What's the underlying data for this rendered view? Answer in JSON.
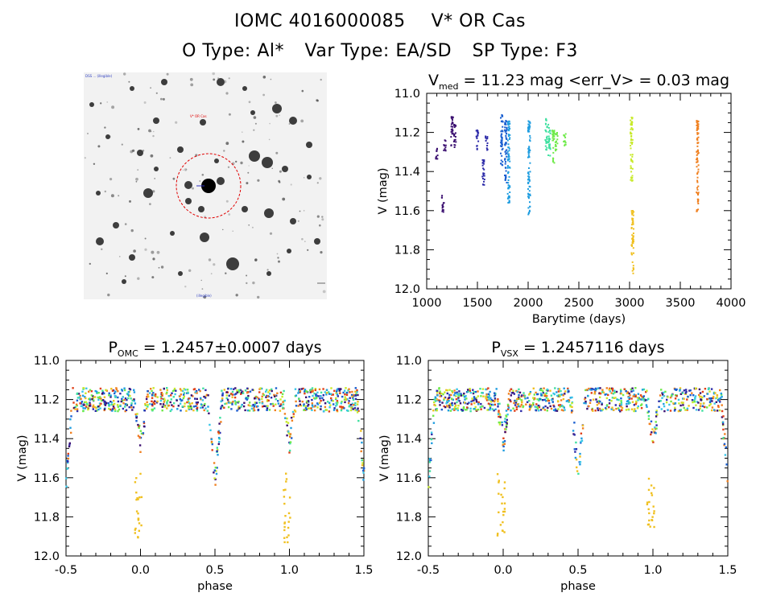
{
  "header": {
    "id": "IOMC 4016000085",
    "star": "V* OR Cas",
    "otype_label": "O Type:",
    "otype": "Al*",
    "vartype_label": "Var Type:",
    "vartype": "EA/SD",
    "sptype_label": "SP Type:",
    "sptype": "F3"
  },
  "sky_image": {
    "top_left_label": "DSS ... (illegible)",
    "target_label": "V* OR Cas",
    "bottom_label": "(illegible)"
  },
  "colors": {
    "palette": [
      "#3b0f70",
      "#2c2aa8",
      "#1a5fd0",
      "#1f9de0",
      "#39c6e8",
      "#3fe0a0",
      "#6fea4a",
      "#c8ea2a",
      "#f0c020",
      "#f08020",
      "#e04018"
    ]
  },
  "chart_data": [
    {
      "type": "scatter",
      "title_parts": [
        "V",
        "med",
        " = 11.23 mag <err_V> = 0.03 mag"
      ],
      "xlabel": "Barytime (days)",
      "ylabel": "V (mag)",
      "xlim": [
        1000,
        4000
      ],
      "ylim": [
        12.0,
        11.0
      ],
      "y_inverted": true,
      "xticks": [
        1000,
        1500,
        2000,
        2500,
        3000,
        3500,
        4000
      ],
      "yticks": [
        11.0,
        11.2,
        11.4,
        11.6,
        11.8,
        12.0
      ],
      "groups": [
        {
          "x": 1100,
          "ymin": 11.28,
          "ymax": 11.34,
          "color_index": 0
        },
        {
          "x": 1160,
          "ymin": 11.52,
          "ymax": 11.61,
          "color_index": 0
        },
        {
          "x": 1180,
          "ymin": 11.24,
          "ymax": 11.3,
          "color_index": 0
        },
        {
          "x": 1250,
          "ymin": 11.12,
          "ymax": 11.29,
          "color_index": 0
        },
        {
          "x": 1280,
          "ymin": 11.16,
          "ymax": 11.29,
          "color_index": 0
        },
        {
          "x": 1500,
          "ymin": 11.18,
          "ymax": 11.29,
          "color_index": 1
        },
        {
          "x": 1560,
          "ymin": 11.34,
          "ymax": 11.48,
          "color_index": 1
        },
        {
          "x": 1590,
          "ymin": 11.22,
          "ymax": 11.29,
          "color_index": 1
        },
        {
          "x": 1740,
          "ymin": 11.11,
          "ymax": 11.38,
          "color_index": 2
        },
        {
          "x": 1780,
          "ymin": 11.14,
          "ymax": 11.47,
          "color_index": 2
        },
        {
          "x": 1810,
          "ymin": 11.14,
          "ymax": 11.58,
          "color_index": 3
        },
        {
          "x": 2010,
          "ymin": 11.14,
          "ymax": 11.62,
          "color_index": 3
        },
        {
          "x": 2180,
          "ymin": 11.13,
          "ymax": 11.29,
          "color_index": 5
        },
        {
          "x": 2210,
          "ymin": 11.16,
          "ymax": 11.32,
          "color_index": 5
        },
        {
          "x": 2250,
          "ymin": 11.18,
          "ymax": 11.36,
          "color_index": 6
        },
        {
          "x": 2280,
          "ymin": 11.2,
          "ymax": 11.3,
          "color_index": 6
        },
        {
          "x": 2360,
          "ymin": 11.2,
          "ymax": 11.28,
          "color_index": 6
        },
        {
          "x": 3020,
          "ymin": 11.12,
          "ymax": 11.46,
          "color_index": 7
        },
        {
          "x": 3030,
          "ymin": 11.6,
          "ymax": 11.93,
          "color_index": 8
        },
        {
          "x": 3670,
          "ymin": 11.14,
          "ymax": 11.61,
          "color_index": 9
        }
      ]
    },
    {
      "type": "scatter",
      "title_parts": [
        "P",
        "OMC",
        " = 1.2457±0.0007 days"
      ],
      "xlabel": "phase",
      "ylabel": "V (mag)",
      "xlim": [
        -0.5,
        1.5
      ],
      "ylim": [
        12.0,
        11.0
      ],
      "y_inverted": true,
      "xticks": [
        -0.5,
        0.0,
        0.5,
        1.0,
        1.5
      ],
      "yticks": [
        11.0,
        11.2,
        11.4,
        11.6,
        11.8,
        12.0
      ],
      "light_curve": {
        "base_mag": 11.2,
        "primary_min_phase": 0.5,
        "primary_depth_mag": 11.61,
        "secondary_min_phase": 0.0,
        "secondary_depth_mag": 11.42,
        "outlier_phase": 0.0,
        "outlier_mag_range": [
          11.57,
          11.93
        ]
      }
    },
    {
      "type": "scatter",
      "title_parts": [
        "P",
        "VSX",
        " = 1.2457116 days"
      ],
      "xlabel": "phase",
      "ylabel": "V (mag)",
      "xlim": [
        -0.5,
        1.5
      ],
      "ylim": [
        12.0,
        11.0
      ],
      "y_inverted": true,
      "xticks": [
        -0.5,
        0.0,
        0.5,
        1.0,
        1.5
      ],
      "yticks": [
        11.0,
        11.2,
        11.4,
        11.6,
        11.8,
        12.0
      ],
      "light_curve": {
        "base_mag": 11.2,
        "primary_min_phase": 0.5,
        "primary_depth_mag": 11.61,
        "secondary_min_phase": 0.0,
        "secondary_depth_mag": 11.42,
        "outlier_phase": 0.0,
        "outlier_mag_range": [
          11.57,
          11.93
        ]
      }
    }
  ]
}
